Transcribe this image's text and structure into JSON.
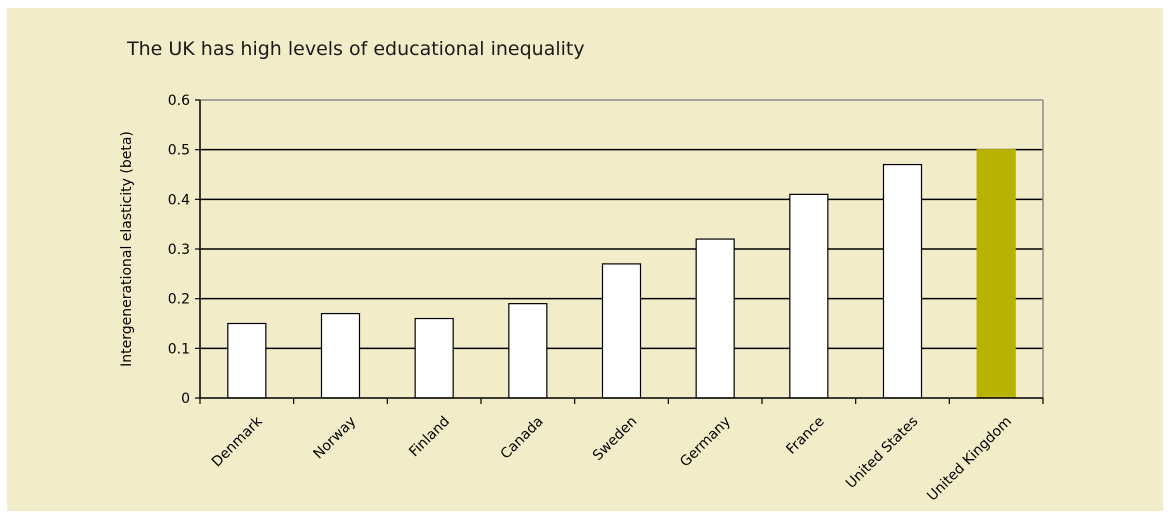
{
  "chart_data": {
    "type": "bar",
    "title": "The UK has high levels of educational inequality",
    "xlabel": "",
    "ylabel": "Intergenerational elasticity (beta)",
    "categories": [
      "Denmark",
      "Norway",
      "Finland",
      "Canada",
      "Sweden",
      "Germany",
      "France",
      "United States",
      "United Kingdom"
    ],
    "values": [
      0.15,
      0.17,
      0.16,
      0.19,
      0.27,
      0.32,
      0.41,
      0.47,
      0.5
    ],
    "ylim": [
      0,
      0.6
    ],
    "yticks": [
      "0",
      "0.1",
      "0.2",
      "0.3",
      "0.4",
      "0.5",
      "0.6"
    ],
    "grid": true,
    "colors": {
      "background": "#f2ecc9",
      "bar_default": "#ffffff",
      "bar_highlight": "#b8b300",
      "grid": "#000000",
      "plot_border": "#8a8a8a"
    },
    "highlight_category": "United Kingdom"
  }
}
